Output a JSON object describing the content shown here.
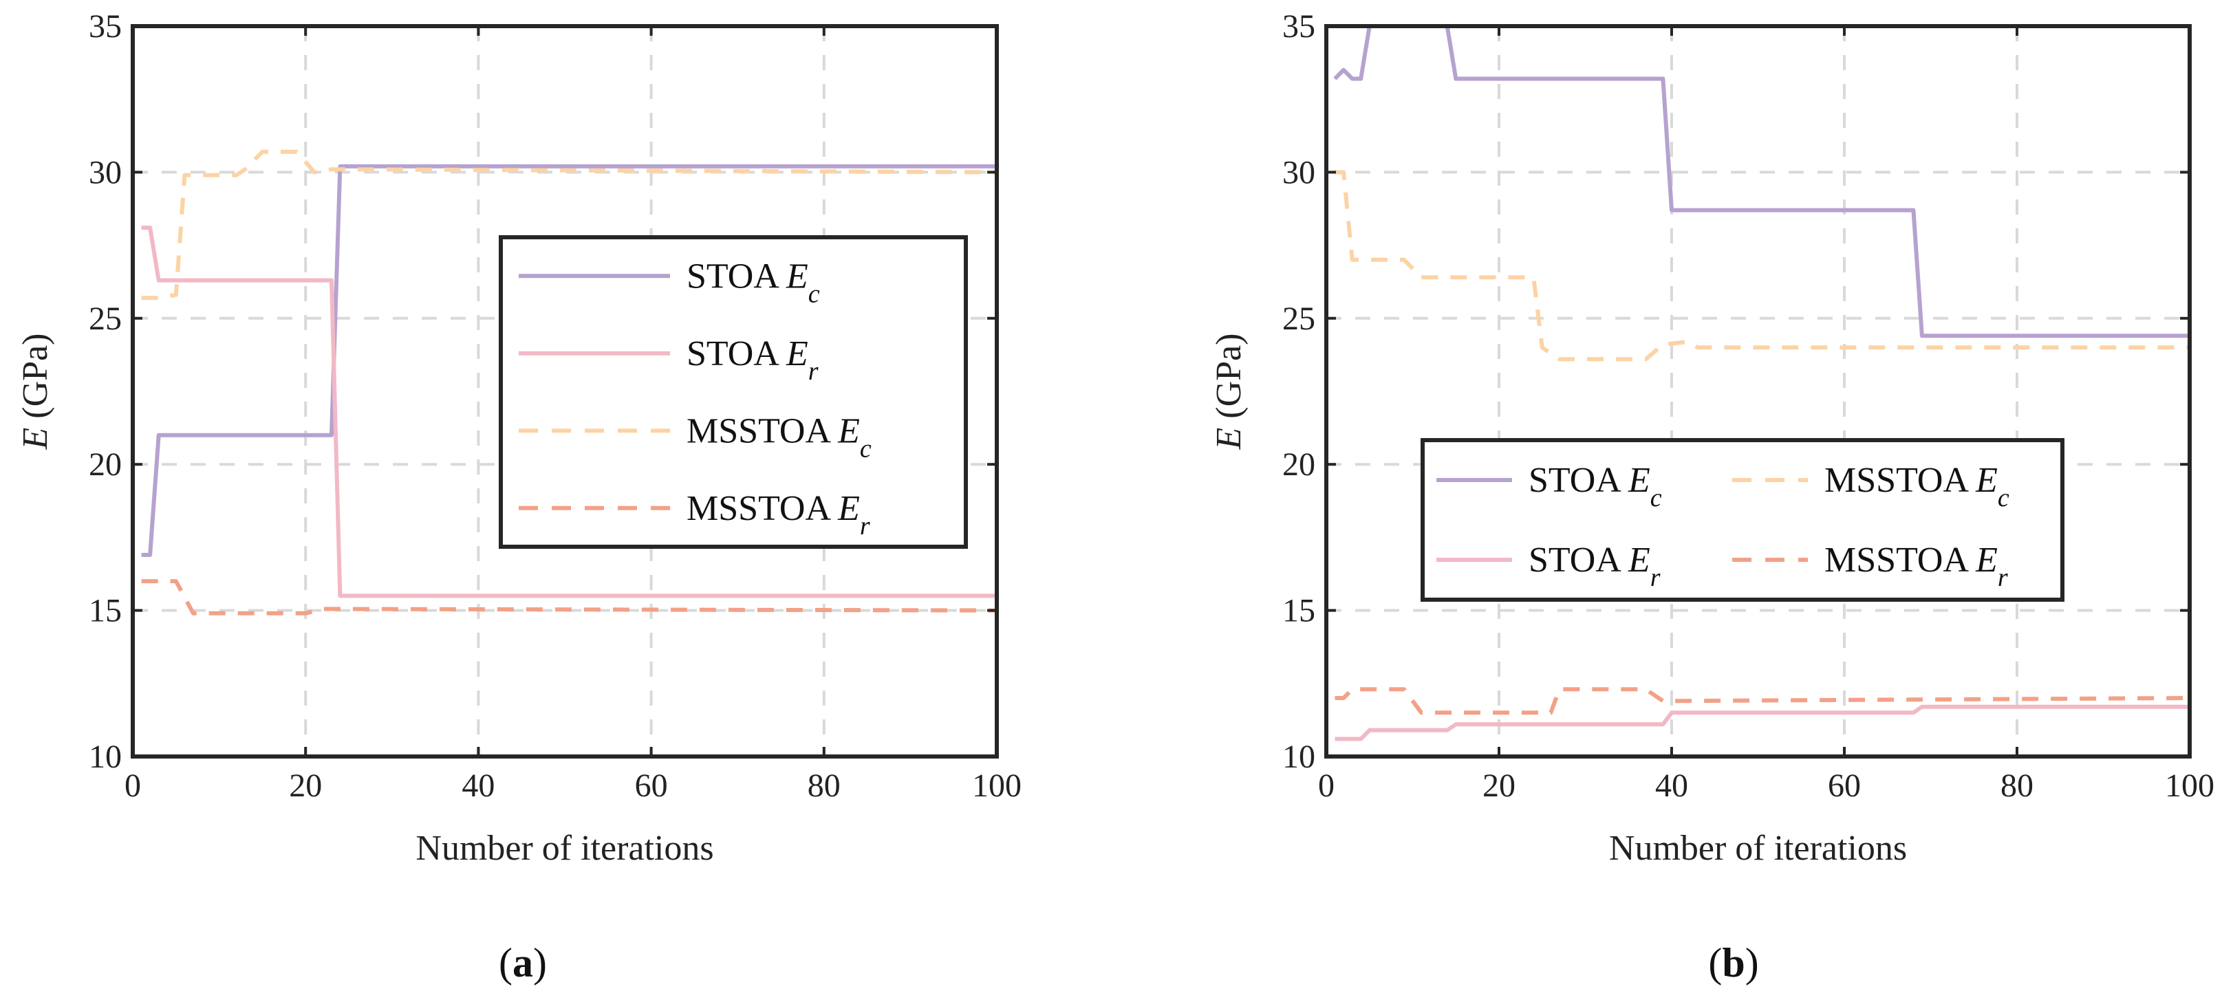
{
  "chart_data": [
    {
      "type": "line",
      "panel_label": "a",
      "xlabel": "Number of iterations",
      "ylabel": {
        "var": "E",
        "unit": "(GPa)"
      },
      "xlim": [
        0,
        100
      ],
      "ylim": [
        10,
        35
      ],
      "xticks": [
        0,
        20,
        40,
        60,
        80,
        100
      ],
      "yticks": [
        10,
        15,
        20,
        25,
        30,
        35
      ],
      "grid": true,
      "legend_position": "right",
      "legend_columns": 1,
      "series": [
        {
          "method": "STOA",
          "var": "E",
          "sub": "c",
          "color": "#b6a2cf",
          "dash": false,
          "points": [
            [
              1,
              16.9
            ],
            [
              2,
              16.9
            ],
            [
              3,
              21.0
            ],
            [
              23,
              21.0
            ],
            [
              24,
              30.2
            ],
            [
              100,
              30.2
            ]
          ]
        },
        {
          "method": "STOA",
          "var": "E",
          "sub": "r",
          "color": "#f2b8c6",
          "dash": false,
          "points": [
            [
              1,
              28.1
            ],
            [
              2,
              28.1
            ],
            [
              3,
              26.3
            ],
            [
              23,
              26.3
            ],
            [
              24,
              15.5
            ],
            [
              100,
              15.5
            ]
          ]
        },
        {
          "method": "MSSTOA",
          "var": "E",
          "sub": "c",
          "color": "#fcd3a5",
          "dash": true,
          "points": [
            [
              1,
              25.7
            ],
            [
              3,
              25.7
            ],
            [
              5,
              25.8
            ],
            [
              6,
              29.9
            ],
            [
              12,
              29.9
            ],
            [
              13,
              30.1
            ],
            [
              15,
              30.7
            ],
            [
              19,
              30.7
            ],
            [
              21,
              30.0
            ],
            [
              23,
              30.1
            ],
            [
              100,
              30.0
            ]
          ]
        },
        {
          "method": "MSSTOA",
          "var": "E",
          "sub": "r",
          "color": "#f2a187",
          "dash": true,
          "points": [
            [
              1,
              16.0
            ],
            [
              5,
              16.0
            ],
            [
              7,
              14.9
            ],
            [
              20,
              14.9
            ],
            [
              22,
              15.05
            ],
            [
              100,
              15.0
            ]
          ]
        }
      ]
    },
    {
      "type": "line",
      "panel_label": "b",
      "xlabel": "Number of iterations",
      "ylabel": {
        "var": "E",
        "unit": "(GPa)"
      },
      "xlim": [
        0,
        100
      ],
      "ylim": [
        10,
        35
      ],
      "xticks": [
        0,
        20,
        40,
        60,
        80,
        100
      ],
      "yticks": [
        10,
        15,
        20,
        25,
        30,
        35
      ],
      "grid": true,
      "legend_position": "center",
      "legend_columns": 2,
      "series": [
        {
          "method": "STOA",
          "var": "E",
          "sub": "c",
          "color": "#b6a2cf",
          "dash": false,
          "points": [
            [
              1,
              33.2
            ],
            [
              2,
              33.5
            ],
            [
              3,
              33.2
            ],
            [
              4,
              33.2
            ],
            [
              5,
              35.0
            ],
            [
              14,
              35.0
            ],
            [
              15,
              33.2
            ],
            [
              39,
              33.2
            ],
            [
              40,
              28.7
            ],
            [
              68,
              28.7
            ],
            [
              69,
              24.4
            ],
            [
              100,
              24.4
            ]
          ]
        },
        {
          "method": "STOA",
          "var": "E",
          "sub": "r",
          "color": "#f2b8c6",
          "dash": false,
          "points": [
            [
              1,
              10.6
            ],
            [
              4,
              10.6
            ],
            [
              5,
              10.9
            ],
            [
              14,
              10.9
            ],
            [
              15,
              11.1
            ],
            [
              39,
              11.1
            ],
            [
              40,
              11.5
            ],
            [
              68,
              11.5
            ],
            [
              69,
              11.7
            ],
            [
              100,
              11.7
            ]
          ]
        },
        {
          "method": "MSSTOA",
          "var": "E",
          "sub": "c",
          "color": "#fcd3a5",
          "dash": true,
          "points": [
            [
              1,
              30.0
            ],
            [
              2,
              30.0
            ],
            [
              3,
              27.0
            ],
            [
              9,
              27.0
            ],
            [
              11,
              26.4
            ],
            [
              24,
              26.4
            ],
            [
              25,
              24.0
            ],
            [
              27,
              23.6
            ],
            [
              37,
              23.6
            ],
            [
              39,
              24.1
            ],
            [
              42,
              24.2
            ],
            [
              43,
              24.0
            ],
            [
              100,
              24.0
            ]
          ]
        },
        {
          "method": "MSSTOA",
          "var": "E",
          "sub": "r",
          "color": "#f2a187",
          "dash": true,
          "points": [
            [
              1,
              12.0
            ],
            [
              2,
              12.0
            ],
            [
              3,
              12.3
            ],
            [
              9,
              12.3
            ],
            [
              11,
              11.5
            ],
            [
              24,
              11.5
            ],
            [
              26,
              11.5
            ],
            [
              27,
              12.3
            ],
            [
              37,
              12.3
            ],
            [
              39,
              11.9
            ],
            [
              100,
              12.0
            ]
          ]
        }
      ]
    }
  ]
}
